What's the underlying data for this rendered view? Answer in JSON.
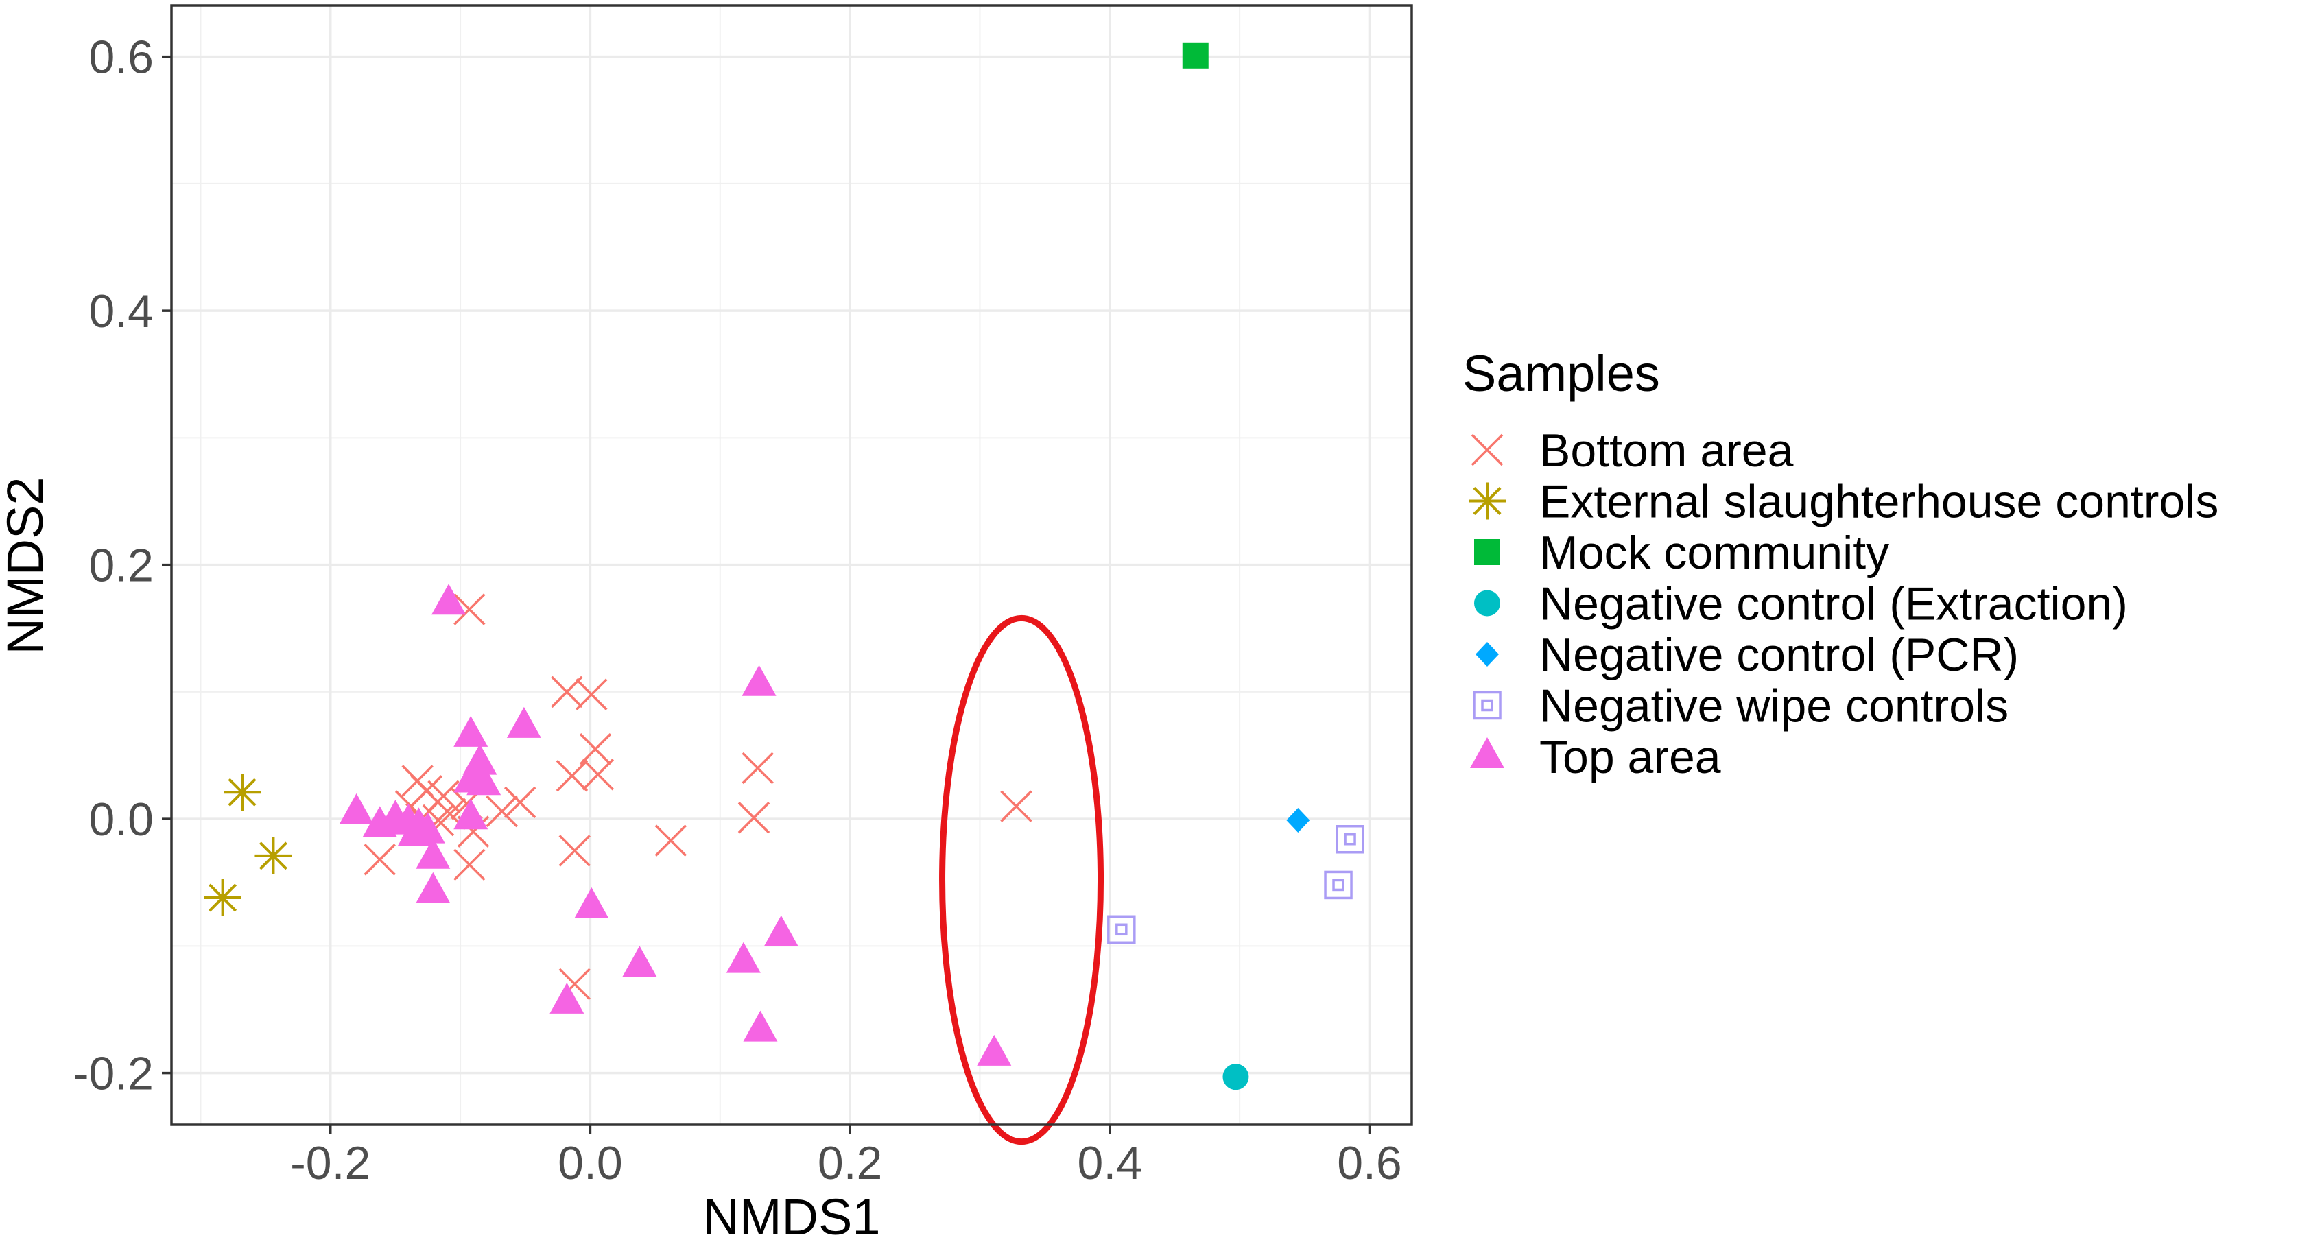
{
  "chart_data": {
    "type": "scatter",
    "title": "",
    "xlabel": "NMDS1",
    "ylabel": "NMDS2",
    "xlim": [
      -0.3224,
      0.6325
    ],
    "ylim": [
      -0.2407,
      0.6403
    ],
    "xticks": [
      -0.2,
      0.0,
      0.2,
      0.4,
      0.6
    ],
    "xtick_labels": [
      "-0.2",
      "0.0",
      "0.2",
      "0.4",
      "0.6"
    ],
    "yticks": [
      -0.2,
      0.0,
      0.2,
      0.4,
      0.6
    ],
    "ytick_labels": [
      "-0.2",
      "0.0",
      "0.2",
      "0.4",
      "0.6"
    ],
    "grid": true,
    "legend_title": "Samples",
    "legend_position": "right",
    "series": [
      {
        "name": "Bottom area",
        "marker": "cross",
        "color": "#F8766D",
        "points": [
          [
            -0.093,
            0.165
          ],
          [
            -0.018,
            0.1
          ],
          [
            0.001,
            0.098
          ],
          [
            0.004,
            0.055
          ],
          [
            -0.014,
            0.034
          ],
          [
            0.006,
            0.035
          ],
          [
            0.129,
            0.04
          ],
          [
            -0.133,
            0.03
          ],
          [
            -0.126,
            0.022
          ],
          [
            -0.113,
            0.018
          ],
          [
            -0.138,
            0.01
          ],
          [
            -0.095,
            0.012
          ],
          [
            -0.108,
            0.004
          ],
          [
            -0.117,
            -0.001
          ],
          [
            -0.13,
            0.0
          ],
          [
            -0.09,
            -0.01
          ],
          [
            -0.068,
            0.006
          ],
          [
            -0.054,
            0.013
          ],
          [
            -0.012,
            -0.025
          ],
          [
            0.062,
            -0.017
          ],
          [
            0.126,
            0.001
          ],
          [
            -0.162,
            -0.032
          ],
          [
            -0.093,
            -0.036
          ],
          [
            -0.012,
            -0.13
          ],
          [
            0.328,
            0.01
          ]
        ]
      },
      {
        "name": "External slaughterhouse controls",
        "marker": "asterisk",
        "color": "#B79F00",
        "points": [
          [
            -0.268,
            0.021
          ],
          [
            -0.244,
            -0.029
          ],
          [
            -0.283,
            -0.062
          ]
        ]
      },
      {
        "name": "Mock community",
        "marker": "square",
        "color": "#00BA38",
        "points": [
          [
            0.466,
            0.601
          ]
        ]
      },
      {
        "name": "Negative control (Extraction)",
        "marker": "circle",
        "color": "#00BFC4",
        "points": [
          [
            0.497,
            -0.203
          ]
        ]
      },
      {
        "name": "Negative control (PCR)",
        "marker": "diamond",
        "color": "#00A9FF",
        "points": [
          [
            0.545,
            -0.001
          ]
        ]
      },
      {
        "name": "Negative wipe controls",
        "marker": "boxed-square",
        "color": "#AA9CF5",
        "points": [
          [
            0.409,
            -0.087
          ],
          [
            0.585,
            -0.016
          ],
          [
            0.576,
            -0.052
          ]
        ]
      },
      {
        "name": "Top area",
        "marker": "triangle",
        "color": "#F564E3",
        "points": [
          [
            -0.109,
            0.17
          ],
          [
            -0.092,
            0.066
          ],
          [
            -0.051,
            0.073
          ],
          [
            -0.085,
            0.044
          ],
          [
            -0.092,
            0.03
          ],
          [
            -0.082,
            0.028
          ],
          [
            -0.18,
            0.005
          ],
          [
            -0.162,
            -0.005
          ],
          [
            -0.15,
            0.0
          ],
          [
            -0.14,
            -0.003
          ],
          [
            -0.132,
            -0.006
          ],
          [
            -0.125,
            -0.01
          ],
          [
            -0.135,
            -0.012
          ],
          [
            -0.092,
            0.001
          ],
          [
            -0.121,
            -0.03
          ],
          [
            -0.121,
            -0.057
          ],
          [
            0.001,
            -0.069
          ],
          [
            0.13,
            0.106
          ],
          [
            0.038,
            -0.115
          ],
          [
            0.118,
            -0.112
          ],
          [
            0.147,
            -0.091
          ],
          [
            -0.018,
            -0.144
          ],
          [
            0.131,
            -0.166
          ],
          [
            0.311,
            -0.185
          ]
        ]
      }
    ],
    "annotations": [
      {
        "type": "ellipse",
        "color": "#E8161A",
        "center": [
          0.332,
          -0.048
        ],
        "radii": [
          0.061,
          0.206
        ]
      }
    ]
  }
}
